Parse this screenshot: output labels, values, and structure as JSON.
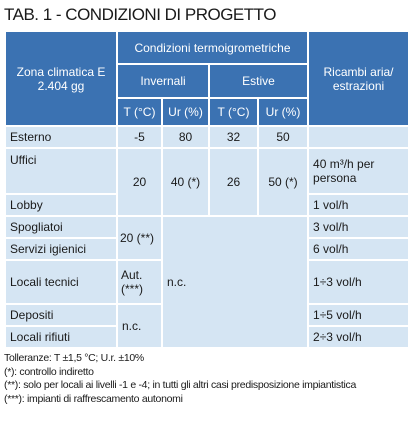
{
  "title": "TAB. 1 - CONDIZIONI DI PROGETTO",
  "header": {
    "zone": "Zona climatica E 2.404 gg",
    "conditions": "Condizioni termoigrometriche",
    "winter": "Invernali",
    "summer": "Estive",
    "columns": [
      "T (°C)",
      "Ur (%)",
      "T (°C)",
      "Ur (%)"
    ],
    "air": "Ricambi aria/ estrazioni"
  },
  "rows": [
    {
      "name": "Esterno",
      "t_winter": -5,
      "ur_winter": 80,
      "t_summer": 32,
      "ur_summer": 50
    },
    {
      "name": "Uffici",
      "t_winter": 20,
      "ur_winter": "40 (*)",
      "t_summer": 26,
      "ur_summer": "50 (*)",
      "air": "40 m³/h per persona"
    },
    {
      "name": "Lobby",
      "air": "1 vol/h"
    },
    {
      "name": "Spogliatoi",
      "t_winter": "20 (**)",
      "other": "n.c.",
      "air": "3 vol/h"
    },
    {
      "name": "Servizi igienici",
      "air": "6 vol/h"
    },
    {
      "name": "Locali tecnici",
      "t_winter": "Aut. (***)",
      "air": "1÷3 vol/h"
    },
    {
      "name": "Depositi",
      "t_winter": "n.c.",
      "air": "1÷5 vol/h"
    },
    {
      "name": "Locali rifiuti",
      "air": "2÷3 vol/h"
    }
  ],
  "notes": [
    "Tolleranze: T ±1,5 °C; U.r. ±10%",
    "(*): controllo indiretto",
    "(**): solo per locali ai livelli -1 e -4; in tutti gli altri casi predisposizione impiantistica",
    "(***): impianti di raffrescamento autonomi"
  ]
}
